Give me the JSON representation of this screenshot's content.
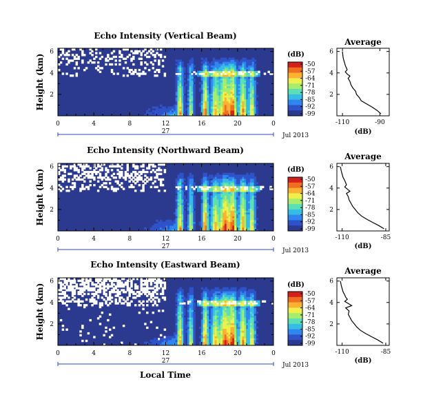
{
  "chart_data": [
    {
      "type": "heatmap",
      "title": "Echo Intensity (Vertical Beam)",
      "ylabel": "Height (km)",
      "xlabel": "",
      "x_ticks": [
        "0",
        "4",
        "8",
        "12",
        "16",
        "20",
        "0"
      ],
      "xlim": [
        0,
        24
      ],
      "y_ticks": [
        "6",
        "4",
        "2"
      ],
      "ylim": [
        0,
        6.3
      ],
      "date_day": "27",
      "date_month": "Jul 2013",
      "colorbar": {
        "unit": "(dB)",
        "ticks": [
          "-50",
          "-57",
          "-64",
          "-71",
          "-78",
          "-85",
          "-92",
          "-99"
        ]
      },
      "average_profile": {
        "title": "Average",
        "xlabel": "(dB)",
        "x_ticks": [
          "-110",
          "-90"
        ],
        "xlim": [
          -113,
          -85
        ],
        "y_ticks": [
          "6",
          "4",
          "2"
        ],
        "ylim": [
          0,
          6.3
        ],
        "height_km": [
          0.2,
          0.5,
          0.8,
          1.1,
          1.4,
          1.7,
          2.0,
          2.3,
          2.6,
          2.9,
          3.2,
          3.5,
          3.7,
          3.9,
          4.1,
          4.3,
          4.5,
          4.7,
          5.0,
          5.3,
          5.6,
          6.0
        ],
        "mean_db": [
          -89.5,
          -91.5,
          -94.0,
          -97.0,
          -100.0,
          -101.0,
          -102.5,
          -103.0,
          -104.5,
          -105.5,
          -106.0,
          -107.0,
          -106.0,
          -107.5,
          -108.5,
          -107.5,
          -108.0,
          -108.5,
          -109.0,
          -109.5,
          -109.8,
          -110.0
        ]
      }
    },
    {
      "type": "heatmap",
      "title": "Echo Intensity (Northward Beam)",
      "ylabel": "Height (km)",
      "xlabel": "",
      "x_ticks": [
        "0",
        "4",
        "8",
        "12",
        "16",
        "20",
        "0"
      ],
      "xlim": [
        0,
        24
      ],
      "y_ticks": [
        "6",
        "4",
        "2"
      ],
      "ylim": [
        0,
        6.3
      ],
      "date_day": "27",
      "date_month": "Jul 2013",
      "colorbar": {
        "unit": "(dB)",
        "ticks": [
          "-50",
          "-57",
          "-64",
          "-71",
          "-78",
          "-85",
          "-92",
          "-99"
        ]
      },
      "average_profile": {
        "title": "Average",
        "xlabel": "(dB)",
        "x_ticks": [
          "-110",
          "-85"
        ],
        "xlim": [
          -113,
          -83
        ],
        "y_ticks": [
          "6",
          "4",
          "2"
        ],
        "ylim": [
          0,
          6.3
        ],
        "height_km": [
          0.2,
          0.5,
          0.8,
          1.1,
          1.4,
          1.7,
          2.0,
          2.3,
          2.6,
          2.9,
          3.2,
          3.5,
          3.7,
          3.9,
          4.1,
          4.3,
          4.5,
          4.7,
          5.0,
          5.3,
          5.6,
          6.0
        ],
        "mean_db": [
          -86.0,
          -89.0,
          -92.5,
          -96.0,
          -99.0,
          -101.0,
          -102.5,
          -104.0,
          -105.0,
          -106.0,
          -106.5,
          -107.5,
          -105.5,
          -107.0,
          -108.5,
          -107.5,
          -108.0,
          -108.5,
          -109.5,
          -110.0,
          -110.5,
          -111.0
        ]
      }
    },
    {
      "type": "heatmap",
      "title": "Echo Intensity (Eastward Beam)",
      "ylabel": "Height (km)",
      "xlabel": "Local Time",
      "x_ticks": [
        "0",
        "4",
        "8",
        "12",
        "16",
        "20",
        "0"
      ],
      "xlim": [
        0,
        24
      ],
      "y_ticks": [
        "6",
        "4",
        "2"
      ],
      "ylim": [
        0,
        6.3
      ],
      "date_day": "27",
      "date_month": "Jul 2013",
      "colorbar": {
        "unit": "(dB)",
        "ticks": [
          "-50",
          "-57",
          "-64",
          "-71",
          "-78",
          "-85",
          "-92",
          "-99"
        ]
      },
      "average_profile": {
        "title": "Average",
        "xlabel": "(dB)",
        "x_ticks": [
          "-110",
          "-85"
        ],
        "xlim": [
          -113,
          -83
        ],
        "y_ticks": [
          "6",
          "4",
          "2"
        ],
        "ylim": [
          0,
          6.3
        ],
        "height_km": [
          0.2,
          0.5,
          0.8,
          1.1,
          1.4,
          1.7,
          2.0,
          2.3,
          2.6,
          2.9,
          3.2,
          3.5,
          3.7,
          3.9,
          4.1,
          4.3,
          4.5,
          4.7,
          5.0,
          5.3,
          5.6,
          6.0
        ],
        "mean_db": [
          -86.5,
          -89.5,
          -93.0,
          -96.5,
          -99.5,
          -101.5,
          -103.0,
          -104.5,
          -105.5,
          -106.5,
          -106.0,
          -108.0,
          -104.5,
          -106.5,
          -108.5,
          -107.0,
          -108.0,
          -108.5,
          -109.5,
          -110.0,
          -110.5,
          -111.0
        ]
      }
    }
  ],
  "colors": {
    "scale": [
      "#2b3a8f",
      "#2f52c8",
      "#2f86ee",
      "#35bde6",
      "#5ae0b4",
      "#a6ec6e",
      "#eef04c",
      "#fbb230",
      "#f06e20",
      "#d3201b"
    ],
    "background": "#ffffff",
    "gap": "#ffffff",
    "date_bar": "#3344c0"
  }
}
